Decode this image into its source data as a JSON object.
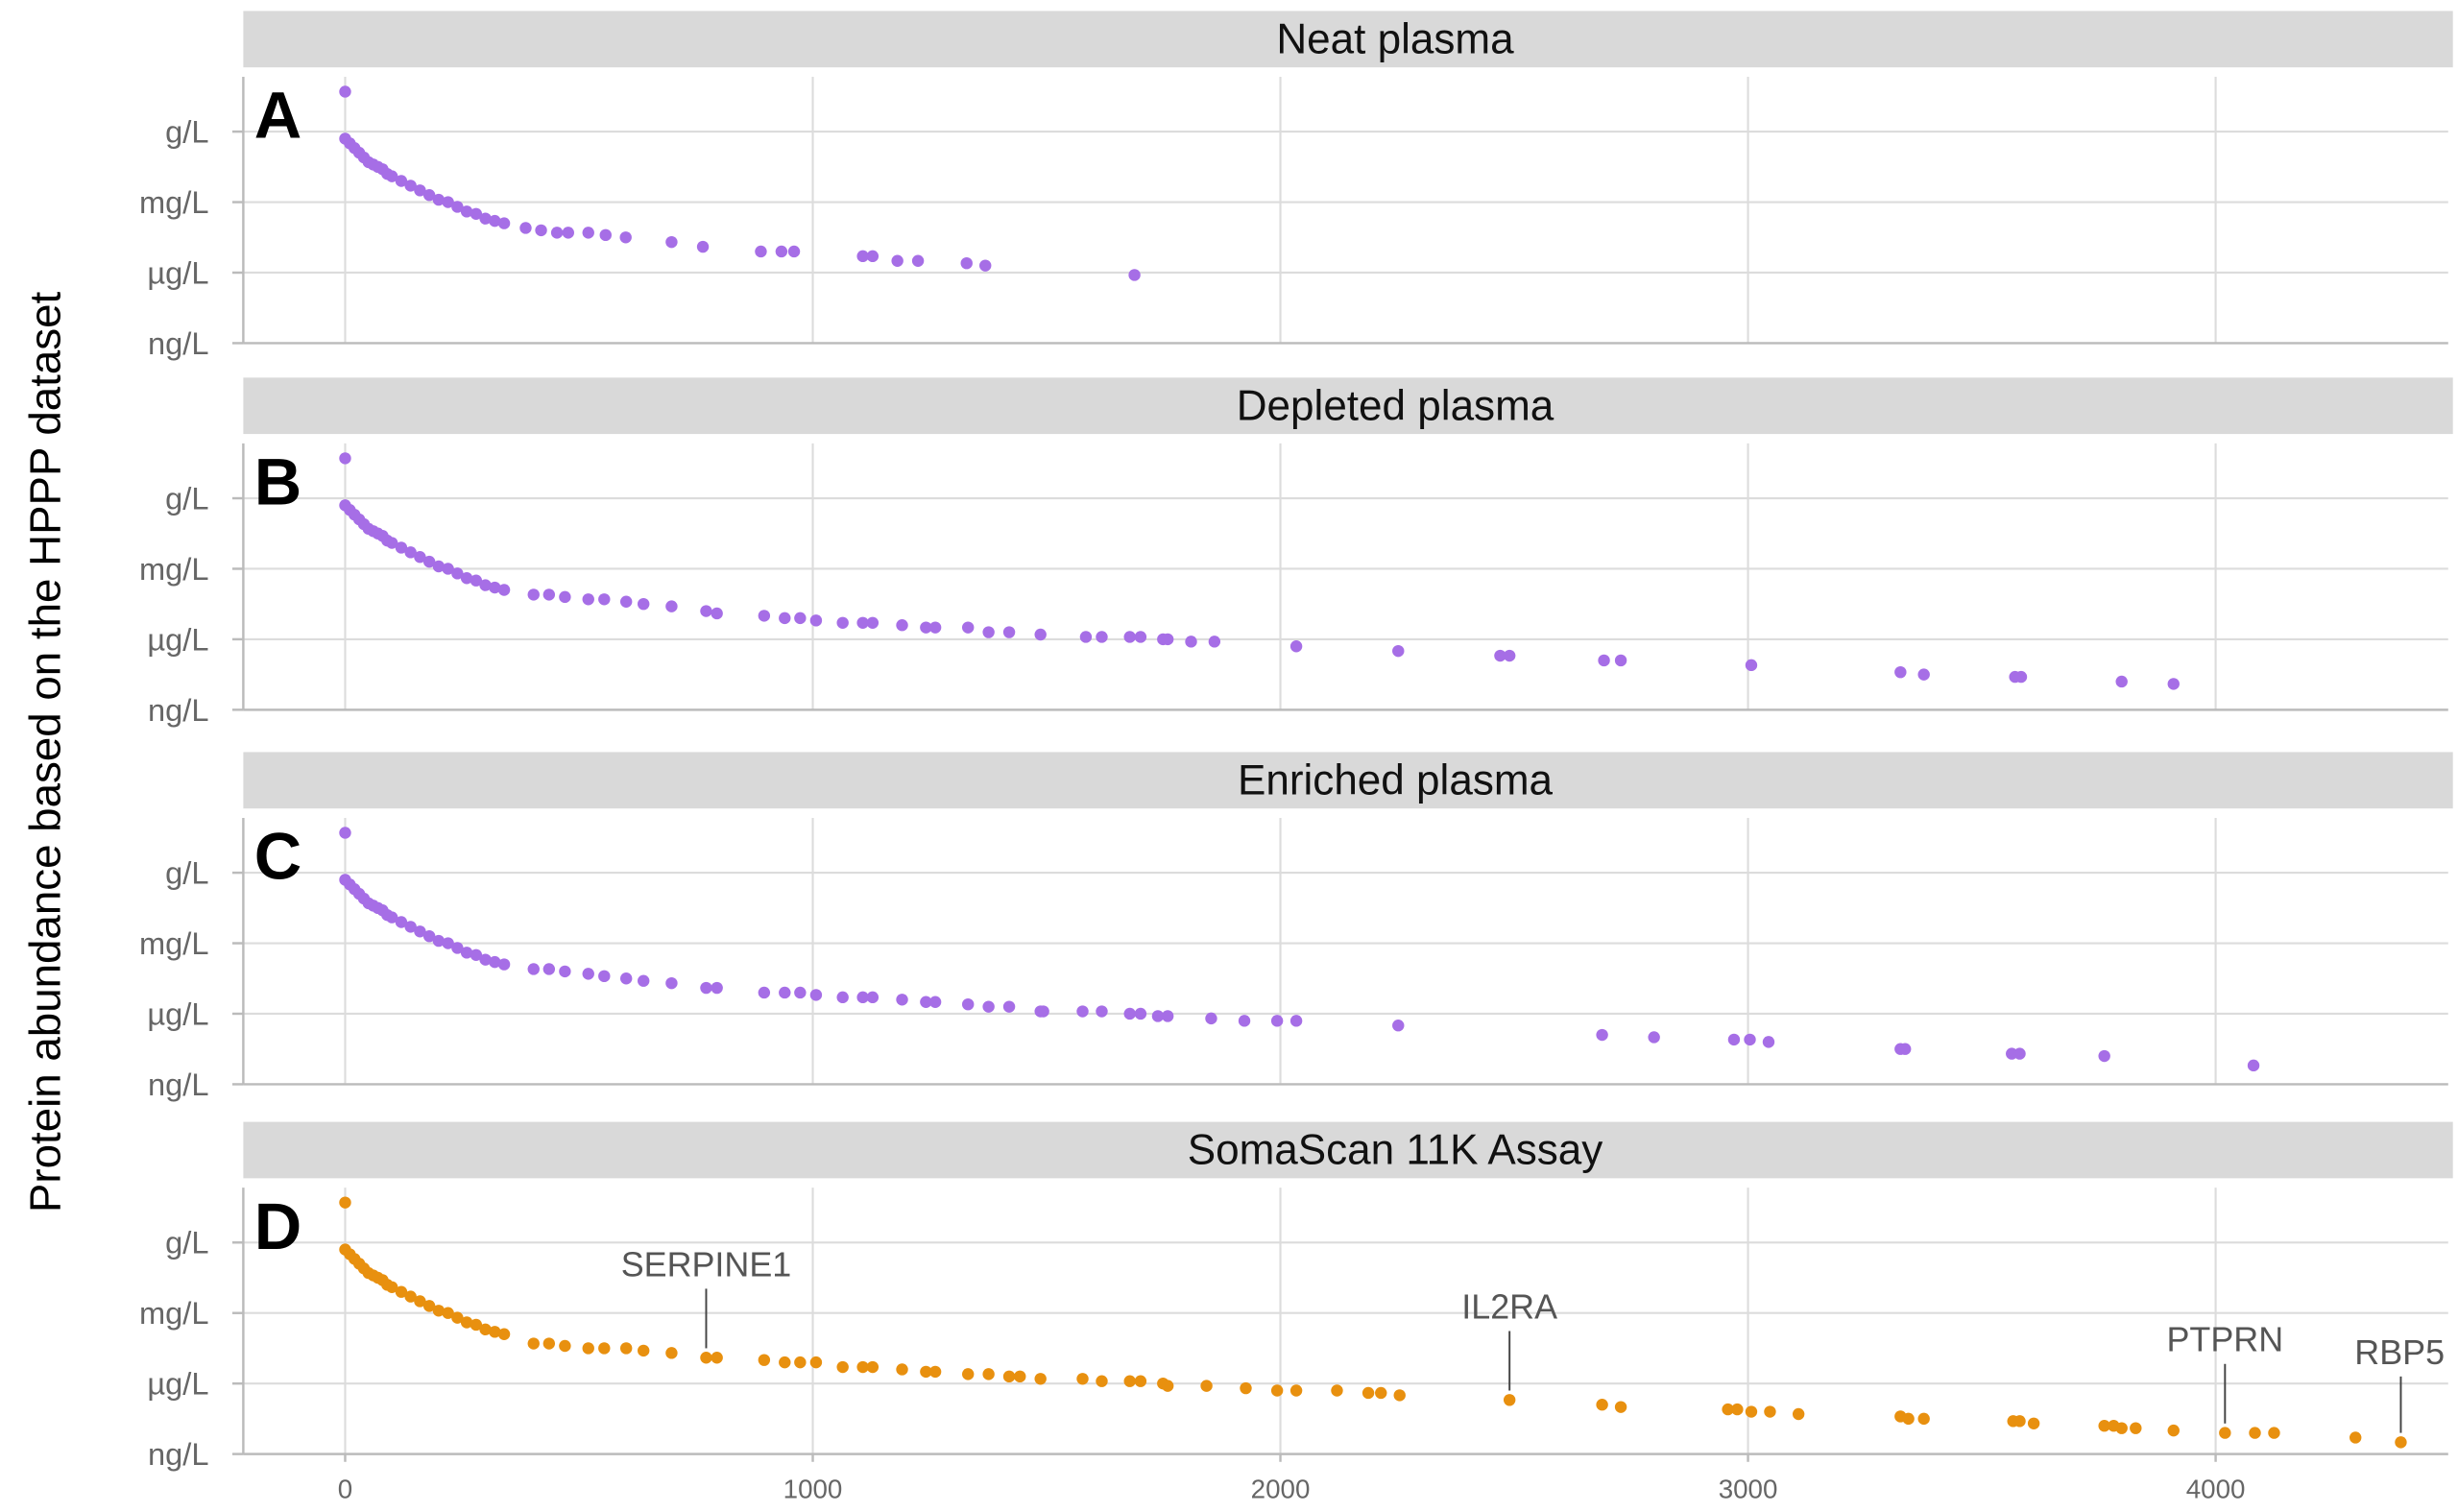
{
  "y_axis_title": "Protein abundance based on the HPPP dataset",
  "y_scale": "log10 concentration (g/L)",
  "y_ticks": [
    {
      "value": 0,
      "label": "g/L"
    },
    {
      "value": -3,
      "label": "mg/L"
    },
    {
      "value": -6,
      "label": "µg/L"
    },
    {
      "value": -9,
      "label": "ng/L"
    }
  ],
  "x_ticks": [
    0,
    1000,
    2000,
    3000,
    4000
  ],
  "xlim": [
    -220,
    4500
  ],
  "ylim": [
    -9,
    2.3
  ],
  "grid": true,
  "shared_top_ranked": [
    [
      0,
      1.7
    ],
    [
      0,
      -0.3
    ],
    [
      10,
      -0.5
    ],
    [
      20,
      -0.7
    ],
    [
      30,
      -0.9
    ],
    [
      40,
      -1.1
    ],
    [
      50,
      -1.3
    ],
    [
      60,
      -1.4
    ],
    [
      70,
      -1.5
    ],
    [
      80,
      -1.6
    ],
    [
      90,
      -1.8
    ],
    [
      100,
      -1.9
    ],
    [
      120,
      -2.1
    ],
    [
      140,
      -2.3
    ],
    [
      160,
      -2.5
    ],
    [
      180,
      -2.7
    ],
    [
      200,
      -2.9
    ],
    [
      220,
      -3.0
    ],
    [
      240,
      -3.2
    ],
    [
      260,
      -3.4
    ],
    [
      280,
      -3.5
    ],
    [
      300,
      -3.7
    ],
    [
      320,
      -3.8
    ],
    [
      340,
      -3.9
    ]
  ],
  "chart_data": [
    {
      "type": "scatter",
      "panel": "A",
      "title": "Neat plasma",
      "color": "#a66ee6",
      "points": [
        [
          386,
          -4.1
        ],
        [
          419,
          -4.2
        ],
        [
          453,
          -4.3
        ],
        [
          477,
          -4.3
        ],
        [
          520,
          -4.3
        ],
        [
          557,
          -4.4
        ],
        [
          600,
          -4.5
        ],
        [
          698,
          -4.7
        ],
        [
          765,
          -4.9
        ],
        [
          889,
          -5.1
        ],
        [
          933,
          -5.1
        ],
        [
          960,
          -5.1
        ],
        [
          1107,
          -5.3
        ],
        [
          1128,
          -5.3
        ],
        [
          1181,
          -5.5
        ],
        [
          1225,
          -5.5
        ],
        [
          1329,
          -5.6
        ],
        [
          1369,
          -5.7
        ],
        [
          1688,
          -6.1
        ]
      ],
      "annotations": []
    },
    {
      "type": "scatter",
      "panel": "B",
      "title": "Depleted plasma",
      "color": "#a66ee6",
      "points": [
        [
          403,
          -4.1
        ],
        [
          436,
          -4.1
        ],
        [
          470,
          -4.2
        ],
        [
          520,
          -4.3
        ],
        [
          554,
          -4.3
        ],
        [
          601,
          -4.4
        ],
        [
          638,
          -4.5
        ],
        [
          698,
          -4.6
        ],
        [
          772,
          -4.8
        ],
        [
          795,
          -4.9
        ],
        [
          896,
          -5.0
        ],
        [
          940,
          -5.1
        ],
        [
          973,
          -5.1
        ],
        [
          1007,
          -5.2
        ],
        [
          1064,
          -5.3
        ],
        [
          1107,
          -5.3
        ],
        [
          1128,
          -5.3
        ],
        [
          1191,
          -5.4
        ],
        [
          1242,
          -5.5
        ],
        [
          1262,
          -5.5
        ],
        [
          1332,
          -5.5
        ],
        [
          1376,
          -5.7
        ],
        [
          1420,
          -5.7
        ],
        [
          1487,
          -5.8
        ],
        [
          1584,
          -5.9
        ],
        [
          1618,
          -5.9
        ],
        [
          1678,
          -5.9
        ],
        [
          1701,
          -5.9
        ],
        [
          1749,
          -6.0
        ],
        [
          1759,
          -6.0
        ],
        [
          1809,
          -6.1
        ],
        [
          1859,
          -6.1
        ],
        [
          2034,
          -6.3
        ],
        [
          2252,
          -6.5
        ],
        [
          2470,
          -6.7
        ],
        [
          2490,
          -6.7
        ],
        [
          2692,
          -6.9
        ],
        [
          2728,
          -6.9
        ],
        [
          3007,
          -7.1
        ],
        [
          3326,
          -7.4
        ],
        [
          3376,
          -7.5
        ],
        [
          3571,
          -7.6
        ],
        [
          3584,
          -7.6
        ],
        [
          3799,
          -7.8
        ],
        [
          3910,
          -7.9
        ]
      ],
      "annotations": []
    },
    {
      "type": "scatter",
      "panel": "C",
      "title": "Enriched plasma",
      "color": "#a66ee6",
      "points": [
        [
          403,
          -4.1
        ],
        [
          436,
          -4.1
        ],
        [
          470,
          -4.2
        ],
        [
          520,
          -4.3
        ],
        [
          554,
          -4.4
        ],
        [
          601,
          -4.5
        ],
        [
          638,
          -4.6
        ],
        [
          698,
          -4.7
        ],
        [
          772,
          -4.9
        ],
        [
          795,
          -4.9
        ],
        [
          896,
          -5.1
        ],
        [
          940,
          -5.1
        ],
        [
          973,
          -5.1
        ],
        [
          1007,
          -5.2
        ],
        [
          1064,
          -5.3
        ],
        [
          1107,
          -5.3
        ],
        [
          1128,
          -5.3
        ],
        [
          1191,
          -5.4
        ],
        [
          1242,
          -5.5
        ],
        [
          1262,
          -5.5
        ],
        [
          1332,
          -5.6
        ],
        [
          1376,
          -5.7
        ],
        [
          1420,
          -5.7
        ],
        [
          1487,
          -5.9
        ],
        [
          1493,
          -5.9
        ],
        [
          1577,
          -5.9
        ],
        [
          1618,
          -5.9
        ],
        [
          1678,
          -6.0
        ],
        [
          1701,
          -6.0
        ],
        [
          1738,
          -6.1
        ],
        [
          1759,
          -6.1
        ],
        [
          1852,
          -6.2
        ],
        [
          1923,
          -6.3
        ],
        [
          1993,
          -6.3
        ],
        [
          2034,
          -6.3
        ],
        [
          2252,
          -6.5
        ],
        [
          2688,
          -6.9
        ],
        [
          2799,
          -7.0
        ],
        [
          2970,
          -7.1
        ],
        [
          3004,
          -7.1
        ],
        [
          3044,
          -7.2
        ],
        [
          3326,
          -7.5
        ],
        [
          3336,
          -7.5
        ],
        [
          3564,
          -7.7
        ],
        [
          3581,
          -7.7
        ],
        [
          3762,
          -7.8
        ],
        [
          4081,
          -8.2
        ]
      ],
      "annotations": []
    },
    {
      "type": "scatter",
      "panel": "D",
      "title": "SomaScan 11K Assay",
      "color": "#e8900f",
      "points": [
        [
          403,
          -4.3
        ],
        [
          436,
          -4.3
        ],
        [
          470,
          -4.4
        ],
        [
          520,
          -4.5
        ],
        [
          554,
          -4.5
        ],
        [
          601,
          -4.5
        ],
        [
          638,
          -4.6
        ],
        [
          698,
          -4.7
        ],
        [
          772,
          -4.9
        ],
        [
          795,
          -4.9
        ],
        [
          896,
          -5.0
        ],
        [
          940,
          -5.1
        ],
        [
          973,
          -5.1
        ],
        [
          1007,
          -5.1
        ],
        [
          1064,
          -5.3
        ],
        [
          1107,
          -5.3
        ],
        [
          1128,
          -5.3
        ],
        [
          1191,
          -5.4
        ],
        [
          1242,
          -5.5
        ],
        [
          1262,
          -5.5
        ],
        [
          1332,
          -5.6
        ],
        [
          1376,
          -5.6
        ],
        [
          1420,
          -5.7
        ],
        [
          1443,
          -5.7
        ],
        [
          1487,
          -5.8
        ],
        [
          1577,
          -5.8
        ],
        [
          1618,
          -5.9
        ],
        [
          1678,
          -5.9
        ],
        [
          1701,
          -5.9
        ],
        [
          1749,
          -6.0
        ],
        [
          1759,
          -6.1
        ],
        [
          1842,
          -6.1
        ],
        [
          1926,
          -6.2
        ],
        [
          1993,
          -6.3
        ],
        [
          2034,
          -6.3
        ],
        [
          2121,
          -6.3
        ],
        [
          2188,
          -6.4
        ],
        [
          2215,
          -6.4
        ],
        [
          2255,
          -6.5
        ],
        [
          2490,
          -6.7
        ],
        [
          2688,
          -6.9
        ],
        [
          2728,
          -7.0
        ],
        [
          2957,
          -7.1
        ],
        [
          2977,
          -7.1
        ],
        [
          3007,
          -7.2
        ],
        [
          3047,
          -7.2
        ],
        [
          3108,
          -7.3
        ],
        [
          3326,
          -7.4
        ],
        [
          3343,
          -7.5
        ],
        [
          3376,
          -7.5
        ],
        [
          3567,
          -7.6
        ],
        [
          3581,
          -7.6
        ],
        [
          3611,
          -7.7
        ],
        [
          3762,
          -7.8
        ],
        [
          3782,
          -7.8
        ],
        [
          3799,
          -7.9
        ],
        [
          3829,
          -7.9
        ],
        [
          3910,
          -8.0
        ],
        [
          4020,
          -8.1
        ],
        [
          4084,
          -8.1
        ],
        [
          4125,
          -8.1
        ],
        [
          4299,
          -8.3
        ],
        [
          4396,
          -8.5
        ]
      ],
      "annotations": [
        {
          "label": "SERPINE1",
          "x": 772,
          "y": -4.9
        },
        {
          "label": "IL2RA",
          "x": 2490,
          "y": -6.7
        },
        {
          "label": "PTPRN",
          "x": 4020,
          "y": -8.1
        },
        {
          "label": "RBP5",
          "x": 4396,
          "y": -8.5
        }
      ]
    }
  ]
}
